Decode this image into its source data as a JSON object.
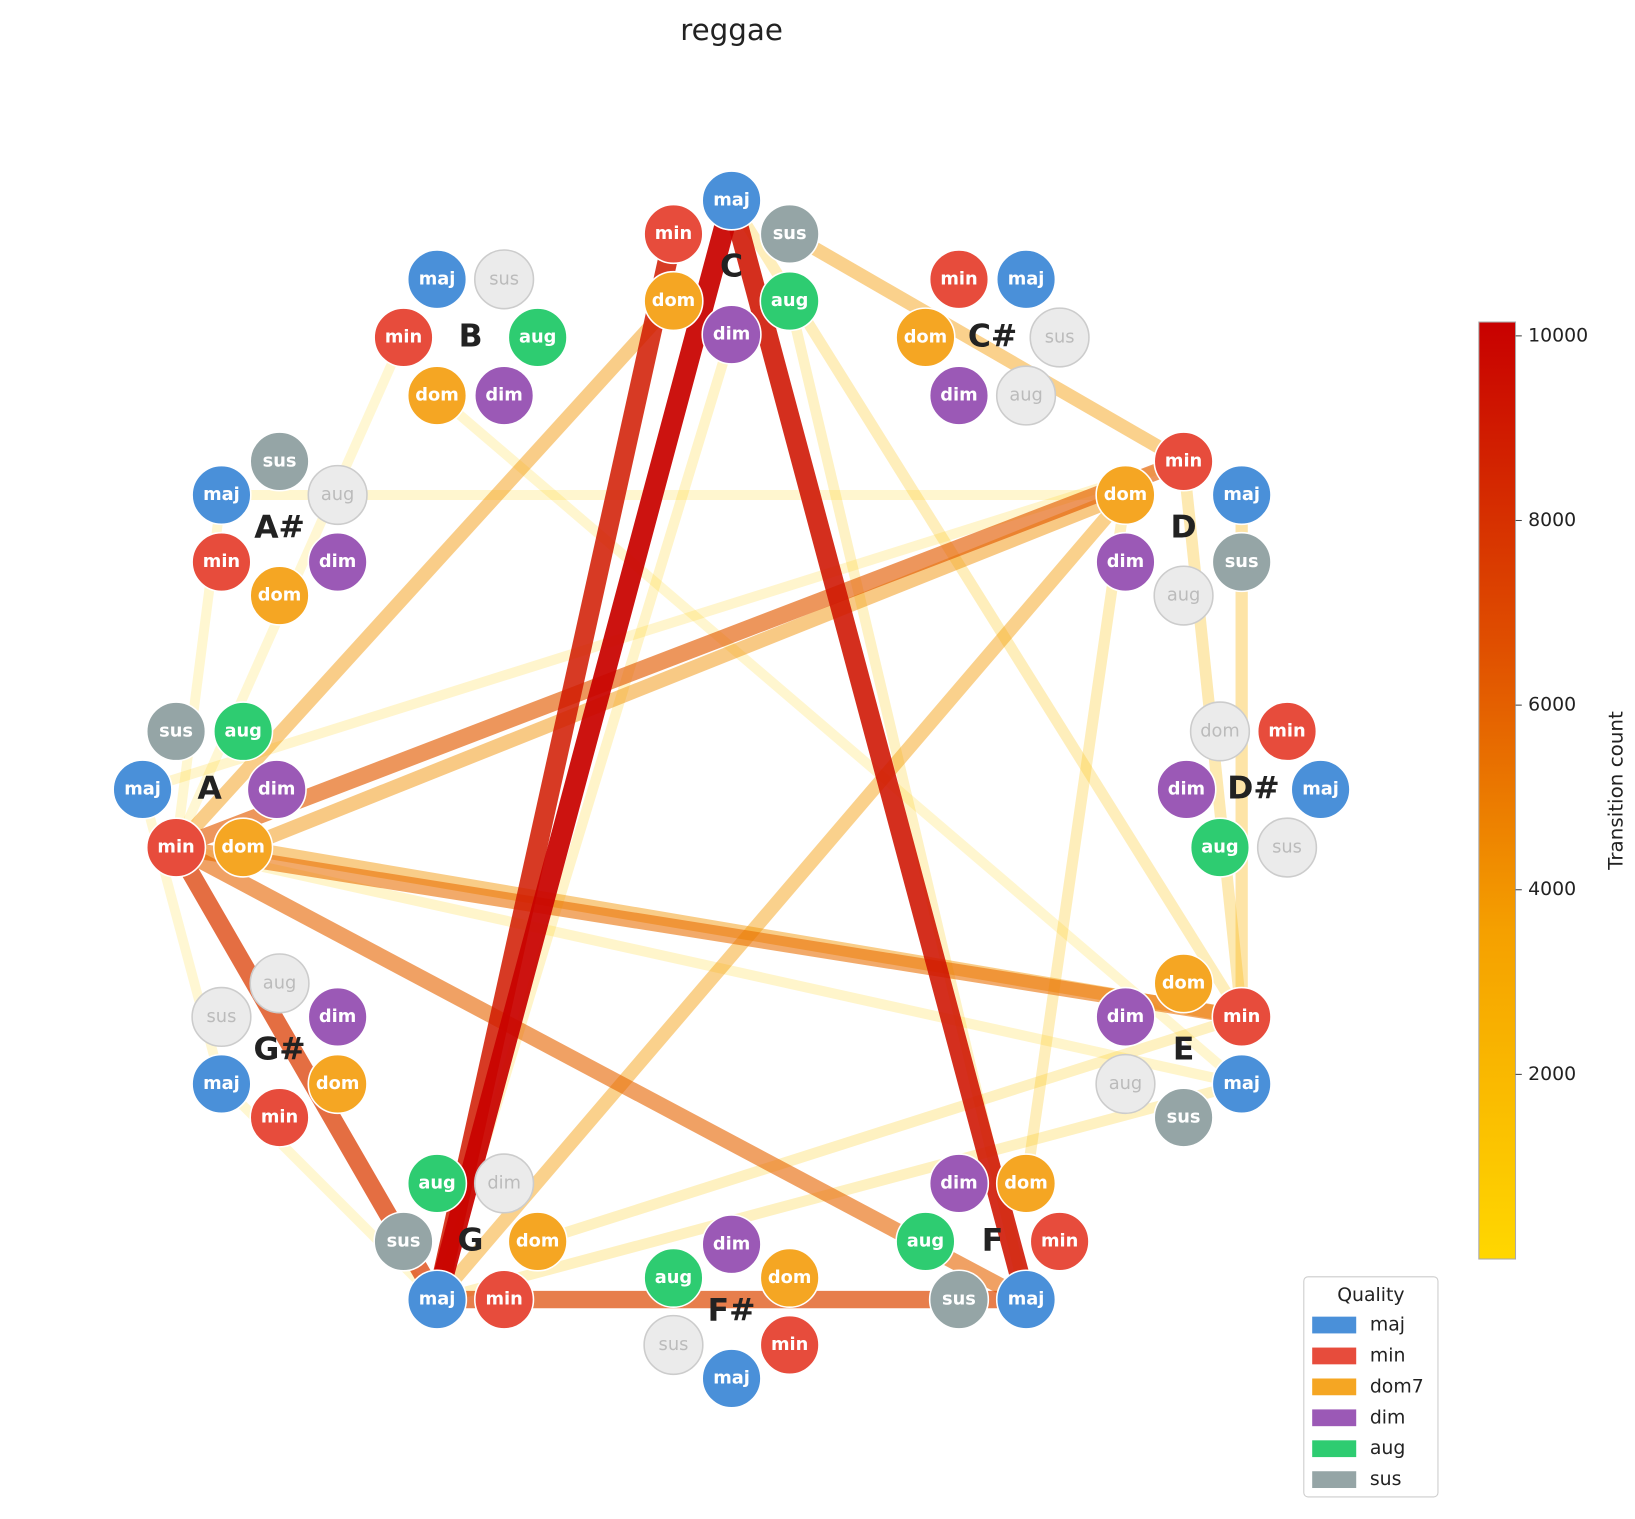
{
  "chart_data": {
    "type": "network",
    "title": "reggae",
    "roots": [
      {
        "name": "C",
        "inactive": []
      },
      {
        "name": "C#",
        "inactive": [
          "sus",
          "aug"
        ]
      },
      {
        "name": "D",
        "inactive": [
          "aug"
        ]
      },
      {
        "name": "D#",
        "inactive": [
          "dom",
          "sus"
        ]
      },
      {
        "name": "E",
        "inactive": [
          "aug"
        ]
      },
      {
        "name": "F",
        "inactive": []
      },
      {
        "name": "F#",
        "inactive": [
          "sus"
        ]
      },
      {
        "name": "G",
        "inactive": [
          "dim"
        ]
      },
      {
        "name": "G#",
        "inactive": [
          "aug",
          "sus"
        ]
      },
      {
        "name": "A",
        "inactive": []
      },
      {
        "name": "A#",
        "inactive": [
          "aug"
        ]
      },
      {
        "name": "B",
        "inactive": [
          "sus"
        ]
      }
    ],
    "qualities": [
      {
        "key": "maj",
        "label": "maj",
        "legend": "maj",
        "color": "#4a90d9"
      },
      {
        "key": "min",
        "label": "min",
        "legend": "min",
        "color": "#e74c3c"
      },
      {
        "key": "dom",
        "label": "dom",
        "legend": "dom7",
        "color": "#f5a623"
      },
      {
        "key": "dim",
        "label": "dim",
        "legend": "dim",
        "color": "#9b59b6"
      },
      {
        "key": "aug",
        "label": "aug",
        "legend": "aug",
        "color": "#2ecc71"
      },
      {
        "key": "sus",
        "label": "sus",
        "legend": "sus",
        "color": "#95a5a6"
      }
    ],
    "legend_title": "Quality",
    "edges": [
      {
        "source": [
          "B",
          "min"
        ],
        "target": [
          "A",
          "min"
        ],
        "count": 300
      },
      {
        "source": [
          "G#",
          "maj"
        ],
        "target": [
          "A",
          "maj"
        ],
        "count": 300
      },
      {
        "source": [
          "A",
          "min"
        ],
        "target": [
          "A#",
          "maj"
        ],
        "count": 400
      },
      {
        "source": [
          "G",
          "maj"
        ],
        "target": [
          "G#",
          "maj"
        ],
        "count": 400
      },
      {
        "source": [
          "B",
          "dom"
        ],
        "target": [
          "E",
          "maj"
        ],
        "count": 500
      },
      {
        "source": [
          "A#",
          "maj"
        ],
        "target": [
          "D",
          "dom"
        ],
        "count": 500
      },
      {
        "source": [
          "A",
          "maj"
        ],
        "target": [
          "D",
          "min"
        ],
        "count": 600
      },
      {
        "source": [
          "A",
          "min"
        ],
        "target": [
          "E",
          "maj"
        ],
        "count": 700
      },
      {
        "source": [
          "C",
          "dim"
        ],
        "target": [
          "G",
          "maj"
        ],
        "count": 800
      },
      {
        "source": [
          "C",
          "aug"
        ],
        "target": [
          "F",
          "maj"
        ],
        "count": 1000
      },
      {
        "source": [
          "G",
          "maj"
        ],
        "target": [
          "E",
          "maj"
        ],
        "count": 1200
      },
      {
        "source": [
          "G",
          "dom"
        ],
        "target": [
          "E",
          "min"
        ],
        "count": 1200
      },
      {
        "source": [
          "F",
          "dom"
        ],
        "target": [
          "D",
          "dom"
        ],
        "count": 1500
      },
      {
        "source": [
          "C",
          "maj"
        ],
        "target": [
          "E",
          "min"
        ],
        "count": 1500
      },
      {
        "source": [
          "D",
          "min"
        ],
        "target": [
          "E",
          "min"
        ],
        "count": 2000
      },
      {
        "source": [
          "D",
          "maj"
        ],
        "target": [
          "E",
          "min"
        ],
        "count": 2500
      },
      {
        "source": [
          "C",
          "sus"
        ],
        "target": [
          "D",
          "min"
        ],
        "count": 3800
      },
      {
        "source": [
          "D",
          "dom"
        ],
        "target": [
          "G",
          "maj"
        ],
        "count": 3800
      },
      {
        "source": [
          "C",
          "dom"
        ],
        "target": [
          "A",
          "min"
        ],
        "count": 4000
      },
      {
        "source": [
          "A",
          "dom"
        ],
        "target": [
          "E",
          "min"
        ],
        "count": 4000
      },
      {
        "source": [
          "A",
          "dom"
        ],
        "target": [
          "D",
          "dom"
        ],
        "count": 4200
      },
      {
        "source": [
          "A",
          "min"
        ],
        "target": [
          "E",
          "min"
        ],
        "count": 5500
      },
      {
        "source": [
          "A",
          "min"
        ],
        "target": [
          "F",
          "maj"
        ],
        "count": 5800
      },
      {
        "source": [
          "A",
          "min"
        ],
        "target": [
          "D",
          "min"
        ],
        "count": 6200
      },
      {
        "source": [
          "G",
          "maj"
        ],
        "target": [
          "F",
          "maj"
        ],
        "count": 7000
      },
      {
        "source": [
          "A",
          "min"
        ],
        "target": [
          "G",
          "maj"
        ],
        "count": 7500
      },
      {
        "source": [
          "C",
          "min"
        ],
        "target": [
          "G",
          "maj"
        ],
        "count": 9000
      },
      {
        "source": [
          "C",
          "maj"
        ],
        "target": [
          "F",
          "maj"
        ],
        "count": 9300
      },
      {
        "source": [
          "C",
          "maj"
        ],
        "target": [
          "G",
          "maj"
        ],
        "count": 10000
      }
    ],
    "colorbar_label": "Transition count",
    "clim": [
      0,
      10150
    ],
    "cticks": [
      2000,
      4000,
      6000,
      8000,
      10000
    ]
  }
}
